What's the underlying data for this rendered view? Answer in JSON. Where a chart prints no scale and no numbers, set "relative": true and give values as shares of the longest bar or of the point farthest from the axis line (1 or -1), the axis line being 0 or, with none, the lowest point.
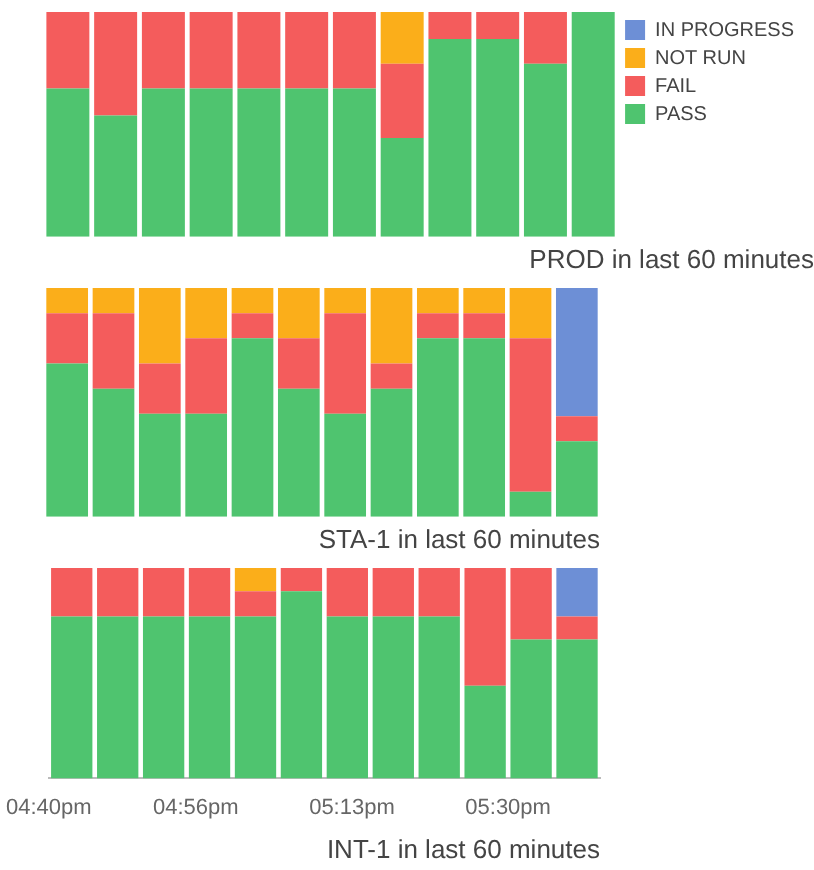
{
  "chart_data": [
    {
      "type": "bar",
      "title": "PROD in last 60 minutes",
      "stacked": true,
      "relative": true,
      "legend": "top right",
      "tick_labels": false,
      "categories": [
        null,
        null,
        null,
        null,
        null,
        null,
        null,
        null,
        null,
        null,
        null,
        null
      ],
      "series": [
        {
          "name": "PASS",
          "color": "#4fc46f",
          "values": [
            0.66,
            0.54,
            0.66,
            0.66,
            0.66,
            0.66,
            0.66,
            0.44,
            0.88,
            0.88,
            0.77,
            1
          ]
        },
        {
          "name": "FAIL",
          "color": "#f45c5c",
          "values": [
            0.34,
            0.46,
            0.34,
            0.34,
            0.34,
            0.34,
            0.34,
            0.33,
            0.12,
            0.12,
            0.23,
            0
          ]
        },
        {
          "name": "NOT RUN",
          "color": "#fbae1a",
          "values": [
            0,
            0,
            0,
            0,
            0,
            0,
            0,
            0.23,
            0,
            0,
            0,
            0
          ]
        },
        {
          "name": "IN PROGRESS",
          "color": "#6d8fd6",
          "values": [
            0,
            0,
            0,
            0,
            0,
            0,
            0,
            0,
            0,
            0,
            0,
            0
          ]
        }
      ]
    },
    {
      "type": "bar",
      "title": "STA-1 in last 60 minutes",
      "stacked": true,
      "relative": true,
      "tick_labels": false,
      "categories": [
        null,
        null,
        null,
        null,
        null,
        null,
        null,
        null,
        null,
        null,
        null,
        null
      ],
      "series": [
        {
          "color": "#4fc46f",
          "values": [
            0.67,
            0.56,
            0.45,
            0.45,
            0.78,
            0.56,
            0.45,
            0.56,
            0.78,
            0.78,
            0.11,
            0.33
          ]
        },
        {
          "color": "#f45c5c",
          "values": [
            0.22,
            0.33,
            0.22,
            0.33,
            0.11,
            0.22,
            0.44,
            0.11,
            0.11,
            0.11,
            0.67,
            0.11
          ]
        },
        {
          "color": "#fbae1a",
          "values": [
            0.11,
            0.11,
            0.33,
            0.22,
            0.11,
            0.22,
            0.11,
            0.33,
            0.11,
            0.11,
            0.22,
            0
          ]
        },
        {
          "color": "#6d8fd6",
          "values": [
            0,
            0,
            0,
            0,
            0,
            0,
            0,
            0,
            0,
            0,
            0,
            0.56
          ]
        }
      ]
    },
    {
      "type": "bar",
      "title": "INT-1 in last 60 minutes",
      "stacked": true,
      "relative": true,
      "tick_labels": "x",
      "xlim": [
        16.6667,
        17.6667
      ],
      "xticks": [
        {
          "value": 16.6667,
          "label": "04:40pm"
        },
        {
          "value": 16.9333,
          "label": "04:56pm"
        },
        {
          "value": 17.2167,
          "label": "05:13pm"
        },
        {
          "value": 17.5,
          "label": "05:30pm"
        }
      ],
      "x": [
        16.7083,
        16.7917,
        16.875,
        16.9583,
        17.0417,
        17.125,
        17.2083,
        17.2917,
        17.375,
        17.4583,
        17.5417,
        17.625
      ],
      "series": [
        {
          "color": "#4fc46f",
          "values": [
            0.77,
            0.77,
            0.77,
            0.77,
            0.77,
            0.89,
            0.77,
            0.77,
            0.77,
            0.44,
            0.66,
            0.66
          ]
        },
        {
          "color": "#f45c5c",
          "values": [
            0.23,
            0.23,
            0.23,
            0.23,
            0.12,
            0.11,
            0.23,
            0.23,
            0.23,
            0.56,
            0.34,
            0.11
          ]
        },
        {
          "color": "#fbae1a",
          "values": [
            0,
            0,
            0,
            0,
            0.11,
            0,
            0,
            0,
            0,
            0,
            0,
            0
          ]
        },
        {
          "color": "#6d8fd6",
          "values": [
            0,
            0,
            0,
            0,
            0,
            0,
            0,
            0,
            0,
            0,
            0,
            0.23
          ]
        }
      ]
    }
  ]
}
